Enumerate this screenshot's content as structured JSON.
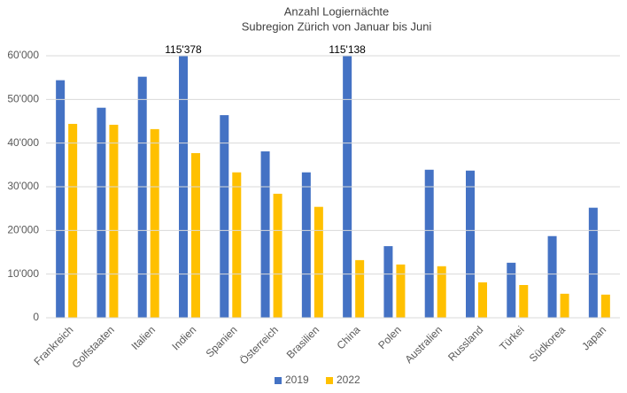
{
  "chart_data": {
    "type": "bar",
    "title": "Anzahl Logiernächte",
    "subtitle": "Subregion Zürich von Januar bis Juni",
    "categories": [
      "Frankreich",
      "Golfstaaten",
      "Italien",
      "Indien",
      "Spanien",
      "Österreich",
      "Brasilien",
      "China",
      "Polen",
      "Australien",
      "Russland",
      "Türkei",
      "Südkorea",
      "Japan"
    ],
    "series": [
      {
        "name": "2019",
        "color": "#4472c4",
        "values": [
          54400,
          48100,
          55200,
          115378,
          46400,
          38100,
          33300,
          115138,
          16400,
          33900,
          33700,
          12600,
          18700,
          25200
        ],
        "value_labels": [
          null,
          null,
          null,
          "115'378",
          null,
          null,
          null,
          "115'138",
          null,
          null,
          null,
          null,
          null,
          null
        ]
      },
      {
        "name": "2022",
        "color": "#ffc000",
        "values": [
          44400,
          44200,
          43200,
          37700,
          33300,
          28400,
          25400,
          13200,
          12200,
          11800,
          8100,
          7500,
          5500,
          5300
        ]
      }
    ],
    "ylim": [
      0,
      60000
    ],
    "yticks": [
      0,
      {
        "value": 10000,
        "label": "10'000"
      },
      {
        "value": 20000,
        "label": "20'000"
      },
      {
        "value": 30000,
        "label": "30'000"
      },
      {
        "value": 40000,
        "label": "40'000"
      },
      {
        "value": 50000,
        "label": "50'000"
      },
      {
        "value": 60000,
        "label": "60'000"
      }
    ],
    "grid": true,
    "legend": "bottom"
  }
}
